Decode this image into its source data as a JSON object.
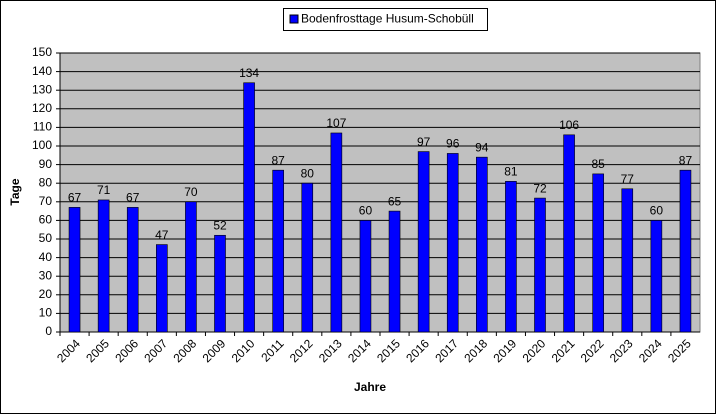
{
  "chart_data": {
    "type": "bar",
    "categories": [
      "2004",
      "2005",
      "2006",
      "2007",
      "2008",
      "2009",
      "2010",
      "2011",
      "2012",
      "2013",
      "2014",
      "2015",
      "2016",
      "2017",
      "2018",
      "2019",
      "2020",
      "2021",
      "2022",
      "2023",
      "2024",
      "2025"
    ],
    "series": [
      {
        "name": "Bodenfrosttage Husum-Schobüll",
        "color": "#0000ff",
        "values": [
          67,
          71,
          67,
          47,
          70,
          52,
          134,
          87,
          80,
          107,
          60,
          65,
          97,
          96,
          94,
          81,
          72,
          106,
          85,
          77,
          60,
          87
        ]
      }
    ],
    "x_label": "Jahre",
    "y_label": "Tage",
    "ylim": [
      0,
      150
    ],
    "yticks": [
      0,
      10,
      20,
      30,
      40,
      50,
      60,
      70,
      80,
      90,
      100,
      110,
      120,
      130,
      140,
      150
    ],
    "grid": true,
    "legend_position": "top"
  }
}
